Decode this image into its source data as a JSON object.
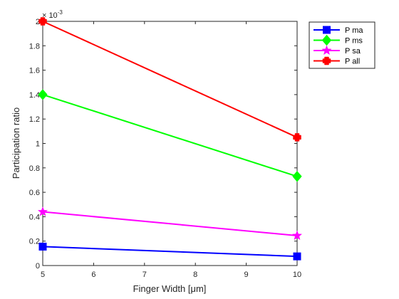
{
  "chart_data": {
    "type": "line",
    "xlabel": "Finger Width [μm]",
    "ylabel": "Participation ratio",
    "y_exponent": "× 10^-3",
    "xlim": [
      5,
      10
    ],
    "ylim": [
      0,
      0.002
    ],
    "xticks": [
      5,
      6,
      7,
      8,
      9,
      10
    ],
    "yticks": [
      0,
      0.0002,
      0.0004,
      0.0006,
      0.0008,
      0.001,
      0.0012,
      0.0014,
      0.0016,
      0.0018,
      0.002
    ],
    "ytick_labels": [
      "0",
      "0.2",
      "0.4",
      "0.6",
      "0.8",
      "1",
      "1.2",
      "1.4",
      "1.6",
      "1.8",
      "2"
    ],
    "xtick_labels": [
      "5",
      "6",
      "7",
      "8",
      "9",
      "10"
    ],
    "grid": false,
    "legend_position": "top-right",
    "x": [
      5,
      10
    ],
    "series": [
      {
        "name": "P ma",
        "values": [
          0.000155,
          7.5e-05
        ],
        "color": "#0000ff",
        "marker": "square"
      },
      {
        "name": "P ms",
        "values": [
          0.0014,
          0.00073
        ],
        "color": "#00ff00",
        "marker": "diamond"
      },
      {
        "name": "P sa",
        "values": [
          0.00044,
          0.000245
        ],
        "color": "#ff00ff",
        "marker": "star"
      },
      {
        "name": "P all",
        "values": [
          0.002,
          0.00105
        ],
        "color": "#ff0000",
        "marker": "cross"
      }
    ]
  }
}
